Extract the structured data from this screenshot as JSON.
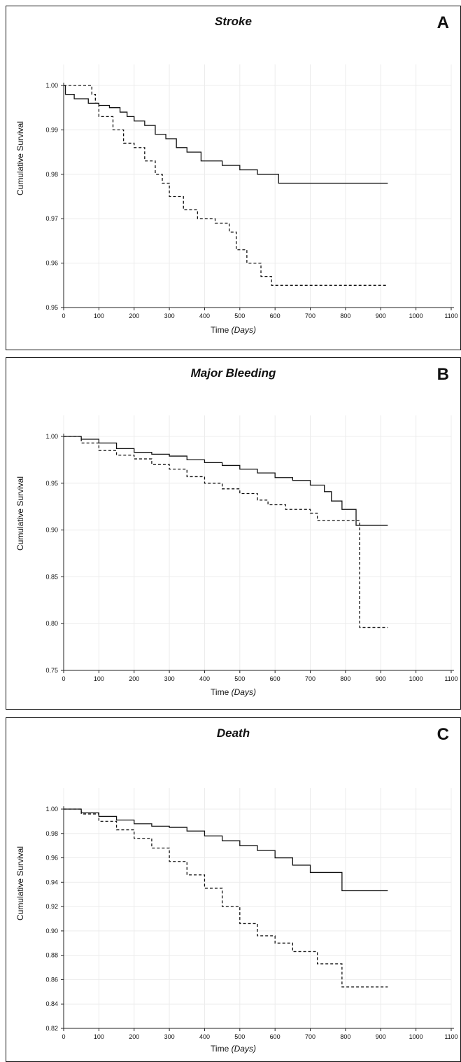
{
  "chart_data": [
    {
      "type": "line",
      "id": "stroke",
      "panel_letter": "A",
      "title": "Stroke",
      "xlabel": "Time",
      "xlabel_unit": "(Days)",
      "ylabel": "Cumulative Survival",
      "xlim": [
        0,
        1100
      ],
      "ylim": [
        0.95,
        1.0
      ],
      "x_ticks": [
        "0",
        "100",
        "200",
        "300",
        "400",
        "500",
        "600",
        "700",
        "800",
        "900",
        "1000",
        "1100"
      ],
      "y_ticks": [
        "0.95",
        "0.96",
        "0.97",
        "0.98",
        "0.99",
        "1.00"
      ],
      "grid": true,
      "series": [
        {
          "style": "solid",
          "x": [
            0,
            5,
            30,
            70,
            100,
            130,
            160,
            180,
            200,
            230,
            260,
            290,
            320,
            350,
            390,
            450,
            500,
            550,
            610,
            920
          ],
          "y": [
            1.0,
            0.998,
            0.997,
            0.996,
            0.9955,
            0.995,
            0.994,
            0.993,
            0.992,
            0.991,
            0.989,
            0.988,
            0.986,
            0.985,
            0.983,
            0.982,
            0.981,
            0.98,
            0.978,
            0.978
          ]
        },
        {
          "style": "dashed",
          "x": [
            0,
            60,
            80,
            90,
            100,
            140,
            170,
            200,
            230,
            260,
            280,
            300,
            340,
            380,
            430,
            470,
            490,
            520,
            560,
            590,
            920
          ],
          "y": [
            1.0,
            1.0,
            0.998,
            0.996,
            0.993,
            0.99,
            0.987,
            0.986,
            0.983,
            0.98,
            0.978,
            0.975,
            0.972,
            0.97,
            0.969,
            0.967,
            0.963,
            0.96,
            0.957,
            0.955,
            0.955
          ]
        }
      ]
    },
    {
      "type": "line",
      "id": "major-bleeding",
      "panel_letter": "B",
      "title": "Major Bleeding",
      "xlabel": "Time",
      "xlabel_unit": "(Days)",
      "ylabel": "Cumulative Survival",
      "xlim": [
        0,
        1100
      ],
      "ylim": [
        0.75,
        1.0
      ],
      "x_ticks": [
        "0",
        "100",
        "200",
        "300",
        "400",
        "500",
        "600",
        "700",
        "800",
        "900",
        "1000",
        "1100"
      ],
      "y_ticks": [
        "0.75",
        "0.80",
        "0.85",
        "0.90",
        "0.95",
        "1.00"
      ],
      "grid": true,
      "series": [
        {
          "style": "solid",
          "x": [
            0,
            50,
            100,
            150,
            200,
            250,
            300,
            350,
            400,
            450,
            500,
            550,
            600,
            650,
            700,
            740,
            760,
            790,
            830,
            920
          ],
          "y": [
            1.0,
            0.997,
            0.993,
            0.987,
            0.983,
            0.981,
            0.979,
            0.975,
            0.972,
            0.969,
            0.965,
            0.961,
            0.956,
            0.953,
            0.948,
            0.941,
            0.931,
            0.922,
            0.905,
            0.905
          ]
        },
        {
          "style": "dashed",
          "x": [
            0,
            50,
            100,
            150,
            200,
            250,
            300,
            350,
            400,
            450,
            500,
            550,
            580,
            630,
            700,
            720,
            840,
            920
          ],
          "y": [
            1.0,
            0.993,
            0.985,
            0.98,
            0.976,
            0.97,
            0.965,
            0.957,
            0.95,
            0.944,
            0.939,
            0.932,
            0.927,
            0.922,
            0.918,
            0.91,
            0.796,
            0.796
          ]
        }
      ]
    },
    {
      "type": "line",
      "id": "death",
      "panel_letter": "C",
      "title": "Death",
      "xlabel": "Time",
      "xlabel_unit": "(Days)",
      "ylabel": "Cumulative Survival",
      "xlim": [
        0,
        1100
      ],
      "ylim": [
        0.82,
        1.0
      ],
      "x_ticks": [
        "0",
        "100",
        "200",
        "300",
        "400",
        "500",
        "600",
        "700",
        "800",
        "900",
        "1000",
        "1100"
      ],
      "y_ticks": [
        "0.82",
        "0.84",
        "0.86",
        "0.88",
        "0.90",
        "0.92",
        "0.94",
        "0.96",
        "0.98",
        "1.00"
      ],
      "grid": true,
      "series": [
        {
          "style": "solid",
          "x": [
            0,
            50,
            100,
            150,
            200,
            250,
            300,
            350,
            400,
            450,
            500,
            550,
            600,
            650,
            700,
            790,
            920
          ],
          "y": [
            1.0,
            0.997,
            0.994,
            0.991,
            0.988,
            0.986,
            0.985,
            0.982,
            0.978,
            0.974,
            0.97,
            0.966,
            0.96,
            0.954,
            0.948,
            0.933,
            0.933
          ]
        },
        {
          "style": "dashed",
          "x": [
            0,
            50,
            100,
            150,
            200,
            250,
            300,
            350,
            400,
            450,
            500,
            550,
            600,
            650,
            720,
            790,
            920
          ],
          "y": [
            1.0,
            0.996,
            0.99,
            0.983,
            0.976,
            0.968,
            0.957,
            0.946,
            0.935,
            0.92,
            0.906,
            0.896,
            0.89,
            0.883,
            0.873,
            0.854,
            0.854
          ]
        }
      ]
    }
  ]
}
